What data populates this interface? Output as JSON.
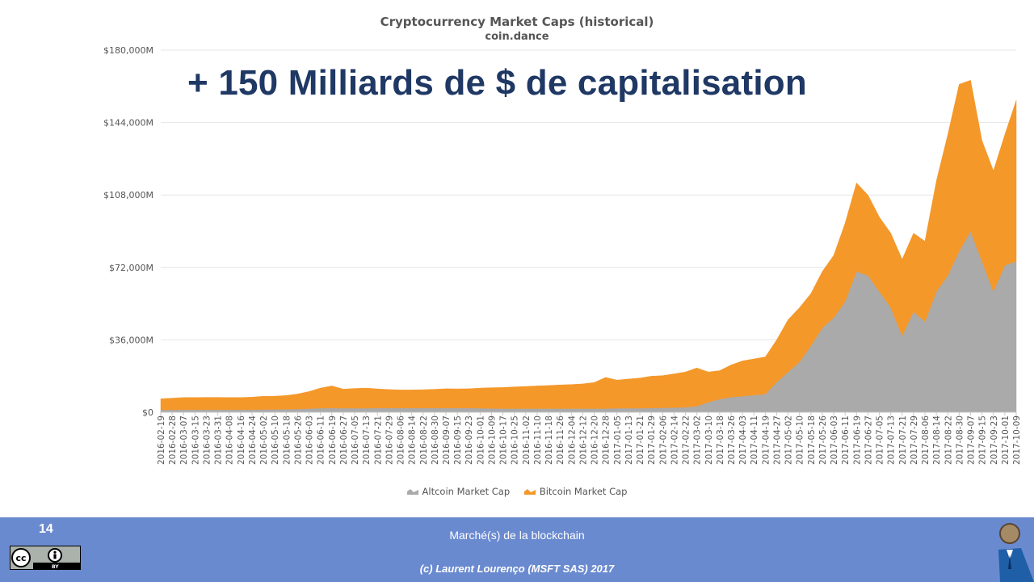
{
  "slide": {
    "headline": "+ 150 Milliards de $ de capitalisation",
    "footer_title": "Marché(s) de la blockchain",
    "footer_copyright": "(c) Laurent Lourenço (MSFT SAS) 2017",
    "slide_number": "14",
    "license_badge": "CC BY",
    "footer_color": "#6a8ad0",
    "headline_color": "#1f3864"
  },
  "chart_data": {
    "type": "area",
    "stacked": true,
    "title": "Cryptocurrency Market Caps (historical)",
    "subtitle": "coin.dance",
    "ylim": [
      0,
      180000
    ],
    "yticks": [
      0,
      36000,
      72000,
      108000,
      144000,
      180000
    ],
    "ytick_labels": [
      "$0",
      "$36,000M",
      "$72,000M",
      "$108,000M",
      "$144,000M",
      "$180,000M"
    ],
    "x_labels": [
      "2016-02-19",
      "2016-02-28",
      "2016-03-07",
      "2016-03-15",
      "2016-03-23",
      "2016-03-31",
      "2016-04-08",
      "2016-04-16",
      "2016-04-24",
      "2016-05-02",
      "2016-05-10",
      "2016-05-18",
      "2016-05-26",
      "2016-06-03",
      "2016-06-11",
      "2016-06-19",
      "2016-06-27",
      "2016-07-05",
      "2016-07-13",
      "2016-07-21",
      "2016-07-29",
      "2016-08-06",
      "2016-08-14",
      "2016-08-22",
      "2016-08-30",
      "2016-09-07",
      "2016-09-15",
      "2016-09-23",
      "2016-10-01",
      "2016-10-09",
      "2016-10-17",
      "2016-10-25",
      "2016-11-02",
      "2016-11-10",
      "2016-11-18",
      "2016-11-26",
      "2016-12-04",
      "2016-12-12",
      "2016-12-20",
      "2016-12-28",
      "2017-01-05",
      "2017-01-13",
      "2017-01-21",
      "2017-01-29",
      "2017-02-06",
      "2017-02-14",
      "2017-02-22",
      "2017-03-02",
      "2017-03-10",
      "2017-03-18",
      "2017-03-26",
      "2017-04-03",
      "2017-04-11",
      "2017-04-19",
      "2017-04-27",
      "2017-05-02",
      "2017-05-10",
      "2017-05-18",
      "2017-05-26",
      "2017-06-03",
      "2017-06-11",
      "2017-06-19",
      "2017-06-27",
      "2017-07-05",
      "2017-07-13",
      "2017-07-21",
      "2017-07-29",
      "2017-08-06",
      "2017-08-14",
      "2017-08-22",
      "2017-08-30",
      "2017-09-07",
      "2017-09-15",
      "2017-09-23",
      "2017-10-01",
      "2017-10-09"
    ],
    "series": [
      {
        "name": "Altcoin Market Cap",
        "color": "#aaaaaa",
        "values": [
          1200,
          1200,
          1300,
          1300,
          1300,
          1300,
          1300,
          1300,
          1300,
          1400,
          1400,
          1500,
          1600,
          1800,
          2000,
          2100,
          2000,
          2000,
          2000,
          2100,
          2100,
          2100,
          2100,
          2100,
          2100,
          2100,
          2100,
          2100,
          2000,
          1900,
          1800,
          1800,
          1800,
          1800,
          1800,
          1800,
          1800,
          1800,
          1800,
          1800,
          2000,
          2000,
          2000,
          2100,
          2200,
          2300,
          2500,
          3000,
          5000,
          6500,
          7500,
          8000,
          8500,
          9000,
          15000,
          20000,
          25000,
          33000,
          42000,
          47000,
          55000,
          70000,
          68000,
          60000,
          52000,
          38000,
          50000,
          45000,
          60000,
          68000,
          80000,
          90000,
          75000,
          60000,
          73000,
          75000
        ]
      },
      {
        "name": "Bitcoin Market Cap",
        "color": "#f4982a",
        "values": [
          5500,
          5800,
          6000,
          6000,
          6100,
          6100,
          6000,
          6000,
          6200,
          6500,
          6600,
          6800,
          7500,
          8500,
          10000,
          11000,
          9500,
          9800,
          10000,
          9500,
          9200,
          9000,
          9000,
          9100,
          9300,
          9600,
          9500,
          9600,
          10000,
          10300,
          10500,
          10800,
          11000,
          11300,
          11500,
          11800,
          12000,
          12300,
          13000,
          15500,
          14000,
          14500,
          15000,
          15800,
          16000,
          16800,
          17500,
          19000,
          15000,
          14200,
          16000,
          17500,
          18000,
          18500,
          21000,
          26000,
          27000,
          26000,
          28000,
          31000,
          39000,
          44000,
          40000,
          37000,
          37000,
          38000,
          39000,
          40000,
          55000,
          70000,
          83000,
          75000,
          60000,
          60000,
          65000,
          80000
        ]
      }
    ],
    "legend_position": "bottom",
    "grid": "horizontal"
  }
}
